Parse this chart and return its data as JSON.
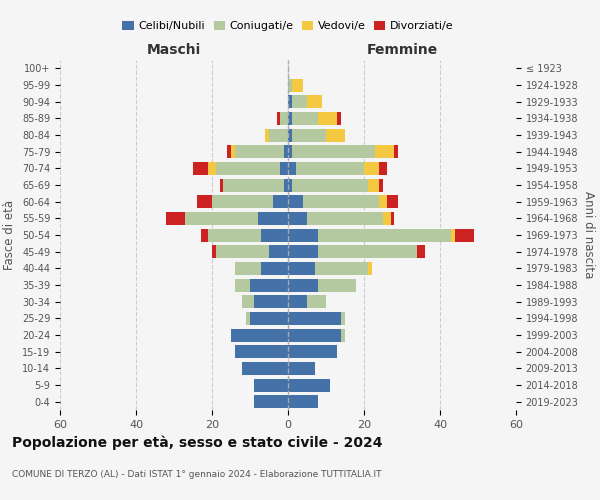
{
  "age_groups": [
    "0-4",
    "5-9",
    "10-14",
    "15-19",
    "20-24",
    "25-29",
    "30-34",
    "35-39",
    "40-44",
    "45-49",
    "50-54",
    "55-59",
    "60-64",
    "65-69",
    "70-74",
    "75-79",
    "80-84",
    "85-89",
    "90-94",
    "95-99",
    "100+"
  ],
  "birth_years": [
    "2019-2023",
    "2014-2018",
    "2009-2013",
    "2004-2008",
    "1999-2003",
    "1994-1998",
    "1989-1993",
    "1984-1988",
    "1979-1983",
    "1974-1978",
    "1969-1973",
    "1964-1968",
    "1959-1963",
    "1954-1958",
    "1949-1953",
    "1944-1948",
    "1939-1943",
    "1934-1938",
    "1929-1933",
    "1924-1928",
    "≤ 1923"
  ],
  "colors": {
    "celibi": "#4472a8",
    "coniugati": "#b5c9a0",
    "vedovi": "#f5c842",
    "divorziati": "#cc2222"
  },
  "maschi": {
    "celibi": [
      9,
      9,
      12,
      14,
      15,
      10,
      9,
      10,
      7,
      5,
      7,
      8,
      4,
      1,
      2,
      1,
      0,
      0,
      0,
      0,
      0
    ],
    "coniugati": [
      0,
      0,
      0,
      0,
      0,
      1,
      3,
      4,
      7,
      14,
      14,
      19,
      16,
      16,
      17,
      13,
      5,
      2,
      0,
      0,
      0
    ],
    "vedovi": [
      0,
      0,
      0,
      0,
      0,
      0,
      0,
      0,
      0,
      0,
      0,
      0,
      0,
      0,
      2,
      1,
      1,
      0,
      0,
      0,
      0
    ],
    "divorziati": [
      0,
      0,
      0,
      0,
      0,
      0,
      0,
      0,
      0,
      1,
      2,
      5,
      4,
      1,
      4,
      1,
      0,
      1,
      0,
      0,
      0
    ]
  },
  "femmine": {
    "celibi": [
      8,
      11,
      7,
      13,
      14,
      14,
      5,
      8,
      7,
      8,
      8,
      5,
      4,
      1,
      2,
      1,
      1,
      1,
      1,
      0,
      0
    ],
    "coniugati": [
      0,
      0,
      0,
      0,
      1,
      1,
      5,
      10,
      14,
      26,
      35,
      20,
      20,
      20,
      18,
      22,
      9,
      7,
      4,
      1,
      0
    ],
    "vedovi": [
      0,
      0,
      0,
      0,
      0,
      0,
      0,
      0,
      1,
      0,
      1,
      2,
      2,
      3,
      4,
      5,
      5,
      5,
      4,
      3,
      0
    ],
    "divorziati": [
      0,
      0,
      0,
      0,
      0,
      0,
      0,
      0,
      0,
      2,
      5,
      1,
      3,
      1,
      2,
      1,
      0,
      1,
      0,
      0,
      0
    ]
  },
  "xlim": 60,
  "title": "Popolazione per età, sesso e stato civile - 2024",
  "subtitle": "COMUNE DI TERZO (AL) - Dati ISTAT 1° gennaio 2024 - Elaborazione TUTTITALIA.IT",
  "xlabel_left": "Maschi",
  "xlabel_right": "Femmine",
  "ylabel": "Fasce di età",
  "ylabel_right": "Anni di nascita",
  "legend_labels": [
    "Celibi/Nubili",
    "Coniugati/e",
    "Vedovi/e",
    "Divorziati/e"
  ],
  "background_color": "#f5f5f5"
}
